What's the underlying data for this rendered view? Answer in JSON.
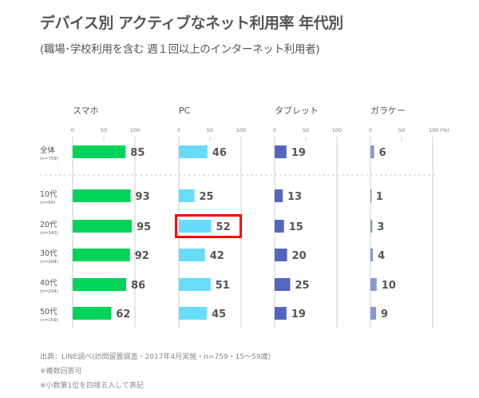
{
  "title": "デバイス別 アクティブなネット利用率  年代別",
  "subtitle": "(職場･学校利用を含む 週１回以上のインターネット利用者)",
  "footnotes": [
    "出典：LINE調べ(訪問留置調査・2017年4月実施・n=759・15〜59歳)",
    "※複数回答可",
    "※小数第1位を四捨五入して表記"
  ],
  "highlight": {
    "row": "20代",
    "series": "PC",
    "color": "#ff0000"
  },
  "chart_data": {
    "type": "bar",
    "orientation": "horizontal",
    "unit": "(%)",
    "xlim": [
      0,
      100
    ],
    "ticks": [
      0,
      50,
      100
    ],
    "categories": [
      "全体",
      "10代",
      "20代",
      "30代",
      "40代",
      "50代"
    ],
    "category_notes": [
      "(n=759)",
      "(n=69)",
      "(n=143)",
      "(n=184)",
      "(n=204)",
      "(n=159)"
    ],
    "series": [
      {
        "name": "スマホ",
        "color": "#00d35a",
        "values": [
          85,
          93,
          95,
          92,
          86,
          62
        ]
      },
      {
        "name": "PC",
        "color": "#66dcf8",
        "values": [
          46,
          25,
          52,
          42,
          51,
          45
        ]
      },
      {
        "name": "タブレット",
        "color": "#5566c0",
        "values": [
          19,
          13,
          15,
          20,
          25,
          19
        ]
      },
      {
        "name": "ガラケー",
        "color": "#8898d0",
        "values": [
          6,
          1,
          3,
          4,
          10,
          9
        ]
      }
    ]
  }
}
